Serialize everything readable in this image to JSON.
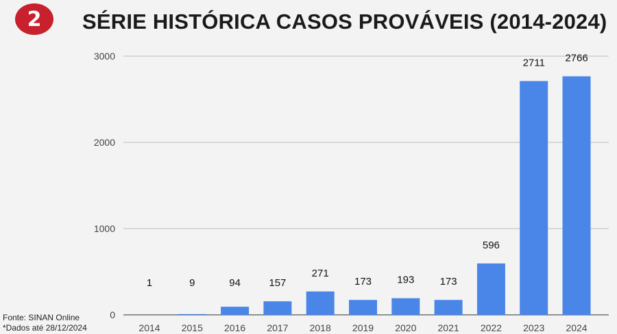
{
  "badge": {
    "number": "2",
    "color": "#c8202c"
  },
  "header": {
    "title": "SÉRIE HISTÓRICA CASOS PROVÁVEIS (2014-2024)"
  },
  "footer": {
    "source": "Fonte: SINAN Online",
    "note": "*Dados até 28/12/2024"
  },
  "chart_data": {
    "type": "bar",
    "title": "SÉRIE HISTÓRICA CASOS PROVÁVEIS (2014-2024)",
    "xlabel": "",
    "ylabel": "",
    "categories": [
      "2014",
      "2015",
      "2016",
      "2017",
      "2018",
      "2019",
      "2020",
      "2021",
      "2022",
      "2023",
      "2024"
    ],
    "values": [
      1,
      9,
      94,
      157,
      271,
      173,
      193,
      173,
      596,
      2711,
      2766
    ],
    "data_labels": [
      "1",
      "9",
      "94",
      "157",
      "271",
      "173",
      "193",
      "173",
      "596",
      "2711",
      "2766"
    ],
    "ylim": [
      0,
      3000
    ],
    "yticks": [
      0,
      1000,
      2000,
      3000
    ],
    "grid": true,
    "legend": "none",
    "bar_color": "#4a86e8"
  }
}
